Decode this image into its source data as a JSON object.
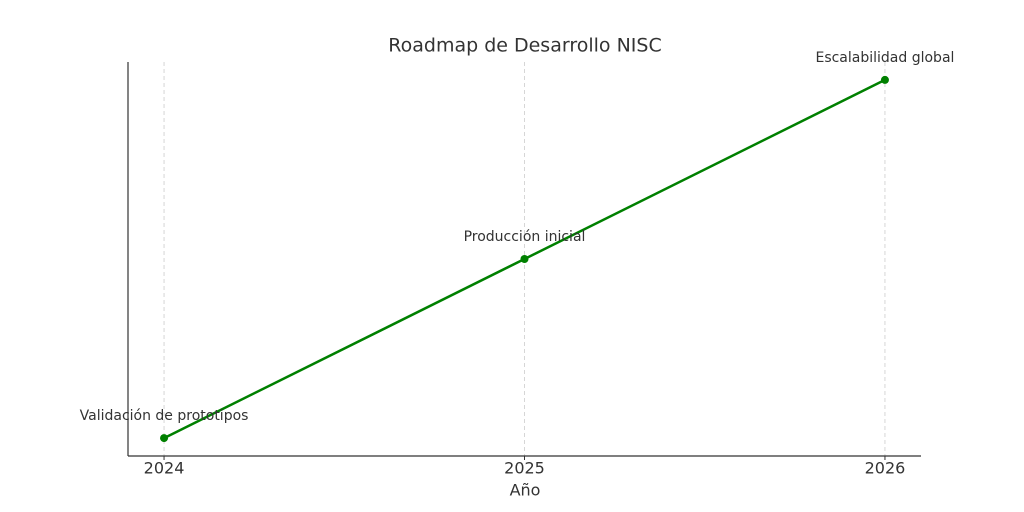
{
  "chart_data": {
    "type": "line",
    "title": "Roadmap de Desarrollo NISC",
    "xlabel": "Año",
    "x": [
      2024,
      2025,
      2026
    ],
    "series": [
      {
        "color": "#008000",
        "values": [
          1,
          2,
          3
        ],
        "labels": [
          "Validación de prototipos",
          "Producción inicial",
          "Escalabilidad global"
        ]
      }
    ],
    "xlim": [
      2023.9,
      2026.1
    ],
    "xticks": [
      2024,
      2025,
      2026
    ],
    "ylim": [
      0.9,
      3.1
    ],
    "grid": "x"
  }
}
